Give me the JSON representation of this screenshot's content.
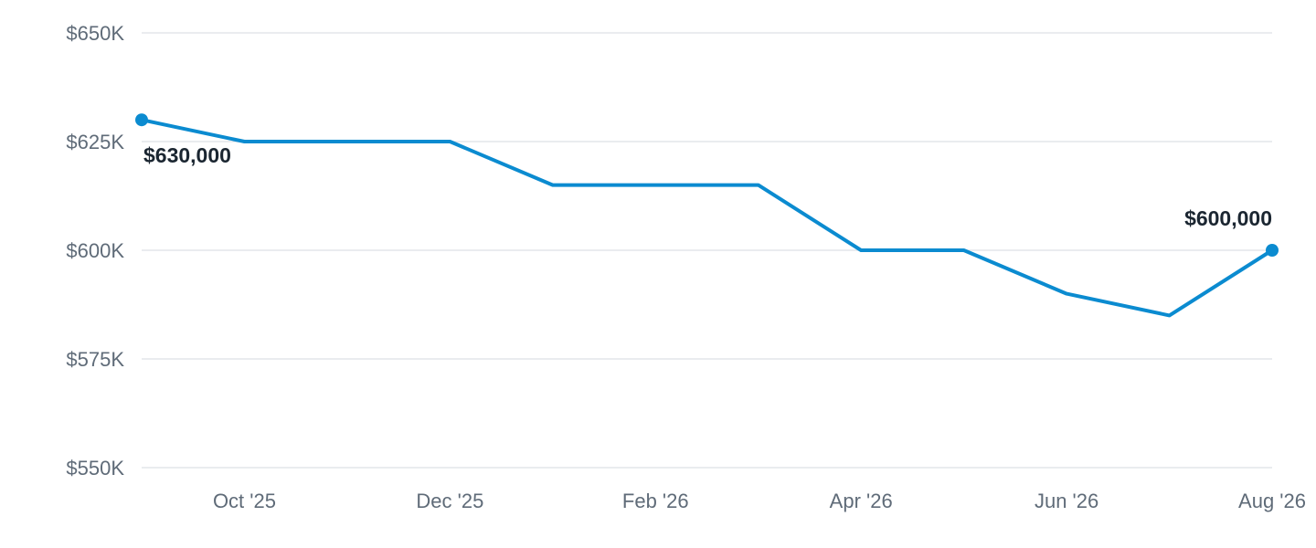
{
  "chart_data": {
    "type": "line",
    "title": "",
    "xlabel": "",
    "ylabel": "",
    "x": [
      "Sep '25",
      "Oct '25",
      "Nov '25",
      "Dec '25",
      "Jan '26",
      "Feb '26",
      "Mar '26",
      "Apr '26",
      "May '26",
      "Jun '26",
      "Jul '26",
      "Aug '26"
    ],
    "x_tick_labels": [
      "Oct '25",
      "Dec '25",
      "Feb '26",
      "Apr '26",
      "Jun '26",
      "Aug '26"
    ],
    "y_tick_values": [
      550000,
      575000,
      600000,
      625000,
      650000
    ],
    "y_tick_labels": [
      "$550K",
      "$575K",
      "$600K",
      "$625K",
      "$650K"
    ],
    "ylim": [
      550000,
      650000
    ],
    "series": [
      {
        "values": [
          630000,
          625000,
          625000,
          625000,
          615000,
          615000,
          615000,
          600000,
          600000,
          590000,
          585000,
          600000
        ],
        "color": "#0b8bd0"
      }
    ],
    "data_labels": [
      {
        "index": 0,
        "text": "$630,000"
      },
      {
        "index": 11,
        "text": "$600,000"
      }
    ],
    "grid": true,
    "legend": "none"
  }
}
